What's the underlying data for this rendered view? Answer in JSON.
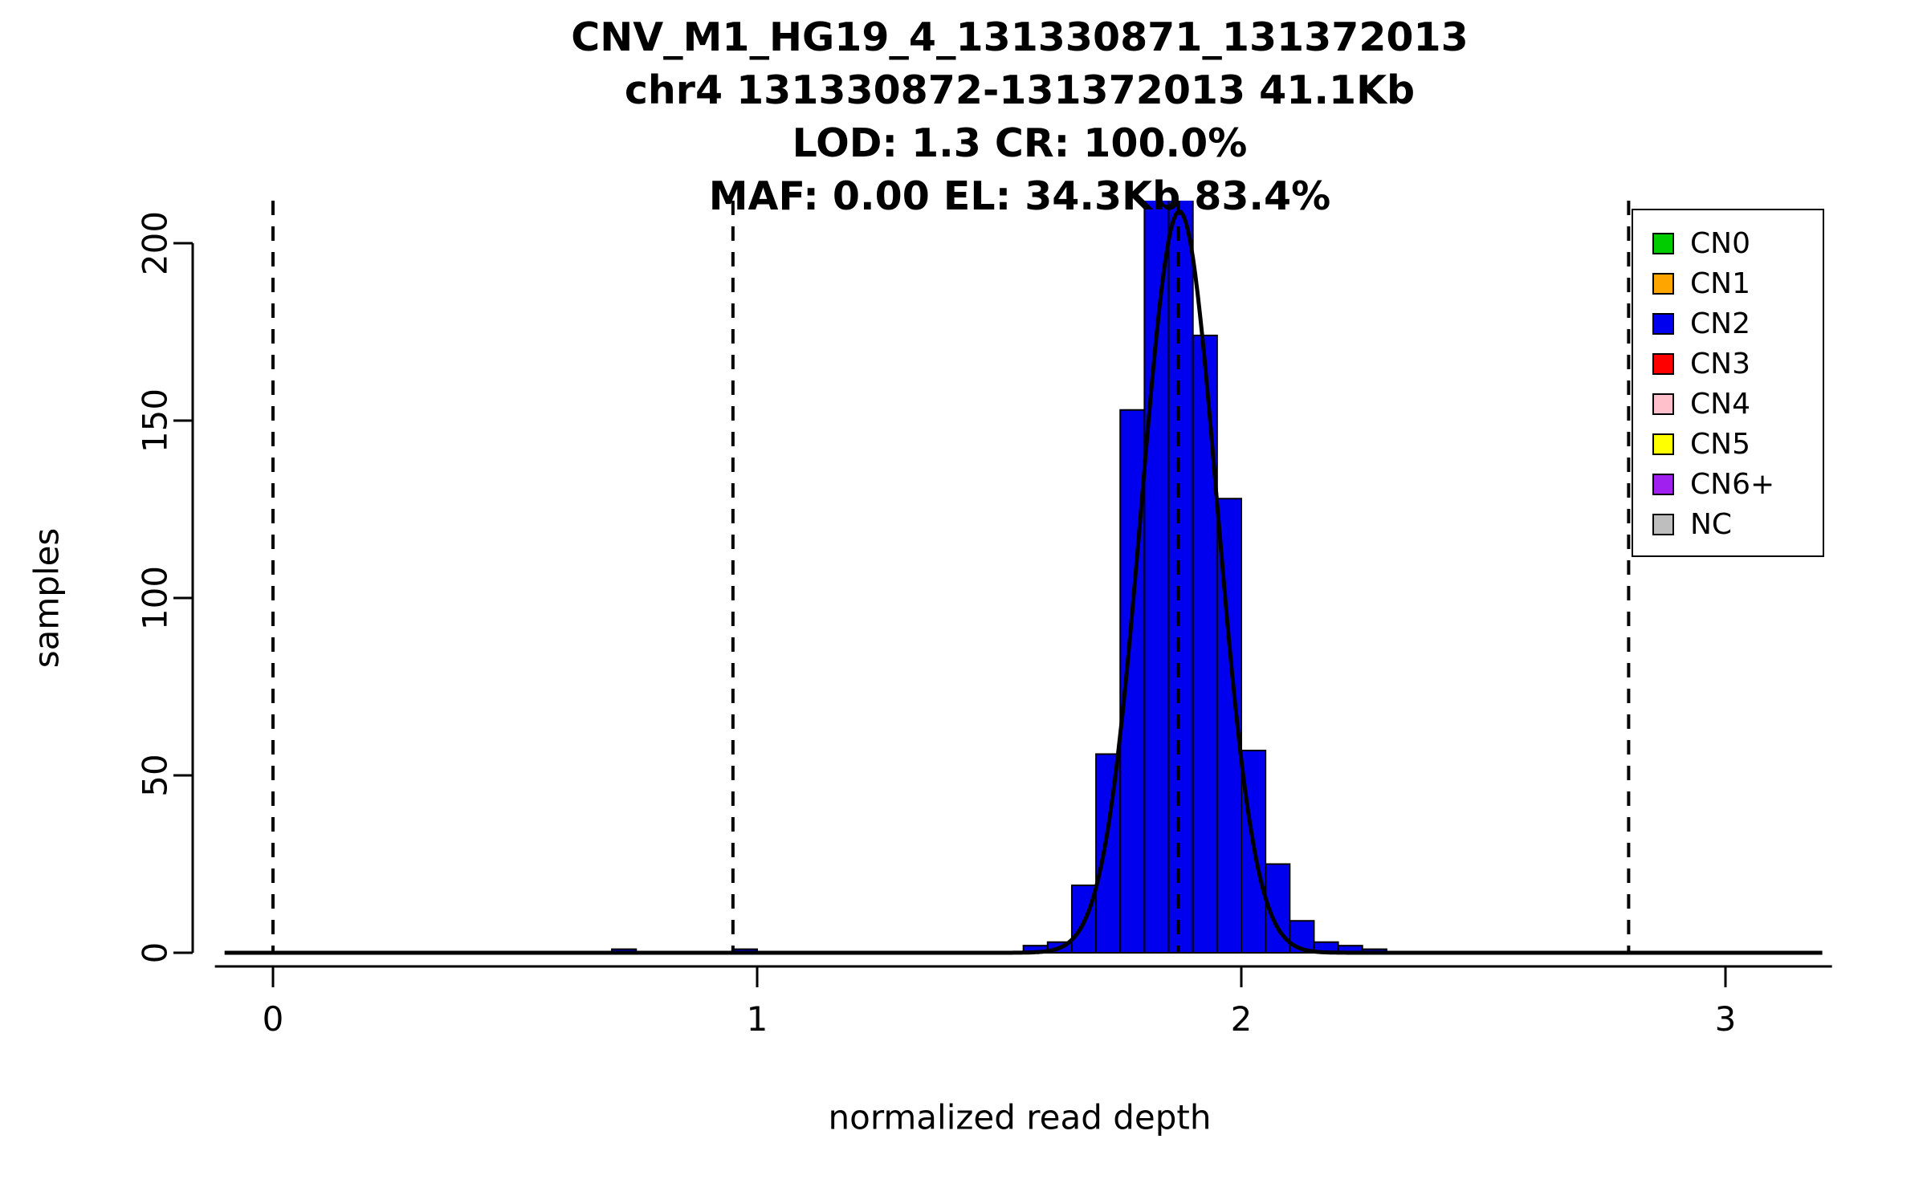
{
  "figure": {
    "background": "#FFFFFF"
  },
  "chart_data": {
    "type": "bar",
    "subtype": "histogram-with-density-curve",
    "title_lines": [
      "CNV_M1_HG19_4_131330871_131372013",
      "chr4 131330872-131372013 41.1Kb",
      "LOD: 1.3 CR: 100.0%",
      "MAF: 0.00 EL: 34.3Kb 83.4%"
    ],
    "xlabel": "normalized read depth",
    "ylabel": "samples",
    "xticks": [
      0,
      1,
      2,
      3
    ],
    "yticks": [
      0,
      50,
      100,
      150,
      200
    ],
    "xlim": [
      -0.12,
      3.22
    ],
    "ylim": [
      0,
      212
    ],
    "grid": false,
    "binwidth": 0.05,
    "bars": [
      {
        "x0": 0.7,
        "count": 1
      },
      {
        "x0": 0.95,
        "count": 1
      },
      {
        "x0": 1.55,
        "count": 2
      },
      {
        "x0": 1.6,
        "count": 3
      },
      {
        "x0": 1.65,
        "count": 19
      },
      {
        "x0": 1.7,
        "count": 56
      },
      {
        "x0": 1.75,
        "count": 153
      },
      {
        "x0": 1.8,
        "count": 215
      },
      {
        "x0": 1.85,
        "count": 215
      },
      {
        "x0": 1.9,
        "count": 174
      },
      {
        "x0": 1.95,
        "count": 128
      },
      {
        "x0": 2.0,
        "count": 57
      },
      {
        "x0": 2.05,
        "count": 25
      },
      {
        "x0": 2.1,
        "count": 9
      },
      {
        "x0": 2.15,
        "count": 3
      },
      {
        "x0": 2.2,
        "count": 2
      },
      {
        "x0": 2.25,
        "count": 1
      }
    ],
    "bar_color": "#0000EE",
    "bar_border": "#000000",
    "dashed_lines_x": [
      0,
      0.95,
      1.87,
      2.8
    ],
    "curve": {
      "shape": "gaussian",
      "mean": 1.872,
      "sd": 0.078,
      "peak": 209,
      "color": "#000000"
    }
  },
  "legend": {
    "position": "top-right",
    "items": [
      {
        "label": "CN0",
        "color": "#00CC00"
      },
      {
        "label": "CN1",
        "color": "#FFA500"
      },
      {
        "label": "CN2",
        "color": "#0000EE"
      },
      {
        "label": "CN3",
        "color": "#FF0000"
      },
      {
        "label": "CN4",
        "color": "#FFC0CB"
      },
      {
        "label": "CN5",
        "color": "#FFFF00"
      },
      {
        "label": "CN6+",
        "color": "#A020F0"
      },
      {
        "label": "NC",
        "color": "#BEBEBE"
      }
    ]
  }
}
